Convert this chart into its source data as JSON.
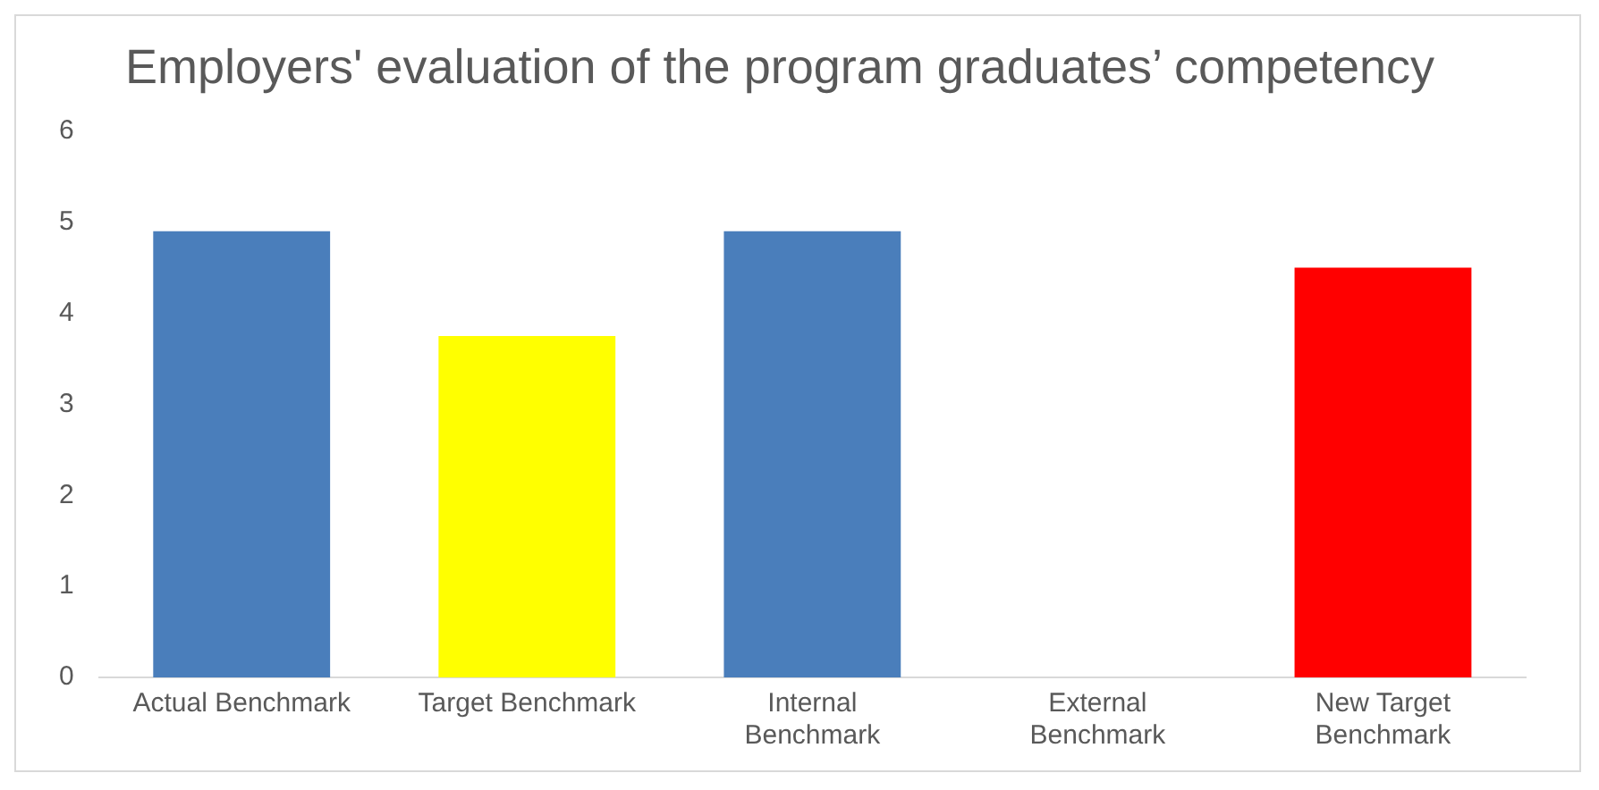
{
  "chart_data": {
    "type": "bar",
    "title": "Employers' evaluation of the program graduates’ competency",
    "categories": [
      "Actual Benchmark",
      "Target Benchmark",
      "Internal Benchmark",
      "External Benchmark",
      "New Target Benchmark"
    ],
    "values": [
      4.9,
      3.75,
      4.9,
      null,
      4.5
    ],
    "colors": [
      "#4a7ebb",
      "#ffff00",
      "#4a7ebb",
      "#4a7ebb",
      "#ff0000"
    ],
    "ylim": [
      0,
      6
    ],
    "yticks": [
      0,
      1,
      2,
      3,
      4,
      5,
      6
    ],
    "grid": false,
    "legend": false
  }
}
